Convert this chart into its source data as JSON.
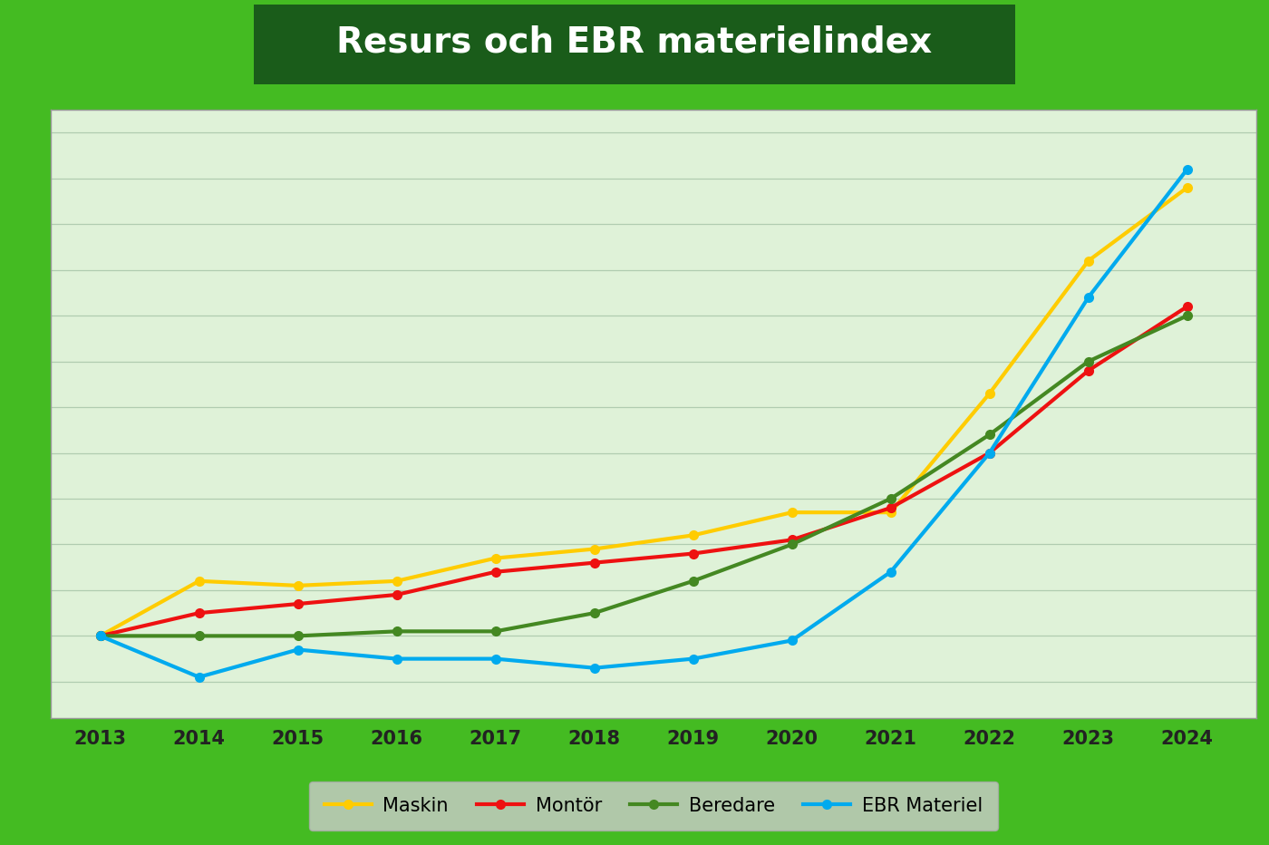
{
  "title": "Resurs och EBR materielindex",
  "title_bg": "#1a5c1a",
  "title_color": "#ffffff",
  "outer_bg": "#44bb22",
  "plot_bg": "#dff2d8",
  "grid_color": "#b0ccb0",
  "years": [
    2013,
    2014,
    2015,
    2016,
    2017,
    2018,
    2019,
    2020,
    2021,
    2022,
    2023,
    2024
  ],
  "maskin": [
    100,
    112,
    111,
    112,
    117,
    119,
    122,
    127,
    127,
    153,
    182,
    198
  ],
  "montor": [
    100,
    105,
    107,
    109,
    114,
    116,
    118,
    121,
    128,
    140,
    158,
    172
  ],
  "beredare": [
    100,
    100,
    100,
    101,
    101,
    105,
    112,
    120,
    130,
    144,
    160,
    170
  ],
  "ebr_materiel": [
    100,
    91,
    97,
    95,
    95,
    93,
    95,
    99,
    114,
    140,
    174,
    202
  ],
  "maskin_color": "#ffcc00",
  "montor_color": "#ee1111",
  "beredare_color": "#448822",
  "ebr_color": "#00aaee",
  "line_width": 3.0,
  "marker_size": 7,
  "legend_bg": "#cccccc",
  "ylim_min": 82,
  "ylim_max": 215,
  "grid_step": 10
}
